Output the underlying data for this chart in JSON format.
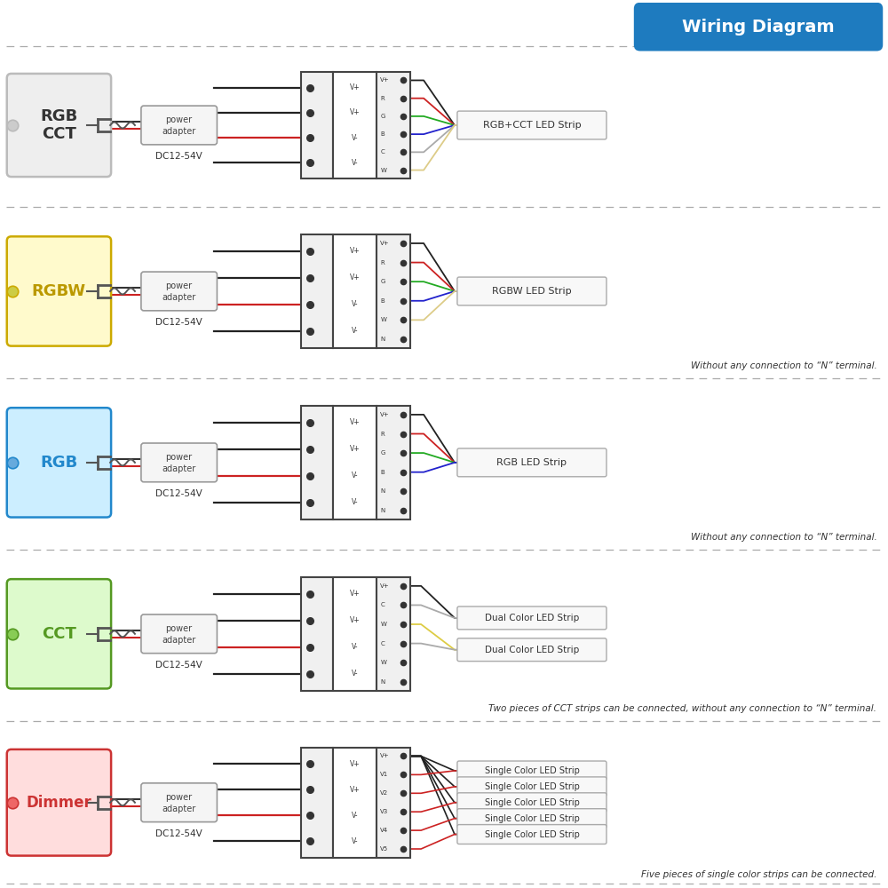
{
  "title": "Wiring Diagram",
  "title_bg": "#1e7bbf",
  "title_color": "#ffffff",
  "bg_color": "#ffffff",
  "line_sep_color": "#aaaaaa",
  "sections": [
    {
      "id": "rgbcct",
      "label": "RGB\nCCT",
      "label_size": 13,
      "label_color": "#333333",
      "box_edge": "#bbbbbb",
      "box_fill": "#eeeeee",
      "dot_color": "#cccccc",
      "input_wire_colors": [
        "#222222",
        "#222222",
        "#cc2222",
        "#222222"
      ],
      "output_wire_colors": [
        "#222222",
        "#cc2222",
        "#22aa22",
        "#2222cc",
        "#aaaaaa",
        "#ddcc88"
      ],
      "in_labels": [
        "V+",
        "V+",
        "V-",
        "V-"
      ],
      "out_labels": [
        "V+",
        "R",
        "G",
        "B",
        "C",
        "W"
      ],
      "n_in_wires": 4,
      "strip_label": "RGB+CCT LED Strip",
      "note": ""
    },
    {
      "id": "rgbw",
      "label": "RGBW",
      "label_size": 13,
      "label_color": "#bb9900",
      "box_edge": "#ccaa00",
      "box_fill": "#fffacc",
      "dot_color": "#cccc44",
      "input_wire_colors": [
        "#222222",
        "#222222",
        "#cc2222",
        "#222222"
      ],
      "output_wire_colors": [
        "#222222",
        "#cc2222",
        "#22aa22",
        "#2222cc",
        "#ddcc88"
      ],
      "in_labels": [
        "V+",
        "V+",
        "V-",
        "V-"
      ],
      "out_labels": [
        "V+",
        "R",
        "G",
        "B",
        "W",
        "N"
      ],
      "n_in_wires": 4,
      "strip_label": "RGBW LED Strip",
      "note": "Without any connection to “N” terminal."
    },
    {
      "id": "rgb",
      "label": "RGB",
      "label_size": 13,
      "label_color": "#2288cc",
      "box_edge": "#2288cc",
      "box_fill": "#cceeff",
      "dot_color": "#66aadd",
      "input_wire_colors": [
        "#222222",
        "#222222",
        "#cc2222",
        "#222222"
      ],
      "output_wire_colors": [
        "#222222",
        "#cc2222",
        "#22aa22",
        "#2222cc"
      ],
      "in_labels": [
        "V+",
        "V+",
        "V-",
        "V-"
      ],
      "out_labels": [
        "V+",
        "R",
        "G",
        "B",
        "N",
        "N"
      ],
      "n_in_wires": 4,
      "strip_label": "RGB LED Strip",
      "note": "Without any connection to “N” terminal."
    },
    {
      "id": "cct",
      "label": "CCT",
      "label_size": 13,
      "label_color": "#559922",
      "box_edge": "#559922",
      "box_fill": "#ddfacc",
      "dot_color": "#88cc55",
      "input_wire_colors": [
        "#222222",
        "#222222",
        "#cc2222",
        "#222222"
      ],
      "output_wire_colors": [
        "#222222",
        "#aaaaaa",
        "#ddcc44",
        "#aaaaaa",
        "#ddcc44"
      ],
      "in_labels": [
        "V+",
        "V+",
        "V-",
        "V-"
      ],
      "out_labels": [
        "V+",
        "C",
        "W",
        "C",
        "W",
        "N"
      ],
      "n_in_wires": 4,
      "strip_label": "Dual Color LED Strip",
      "strip_label2": "Dual Color LED Strip",
      "note": "Two pieces of CCT strips can be connected, without any connection to “N” terminal."
    },
    {
      "id": "dimmer",
      "label": "Dimmer",
      "label_size": 12,
      "label_color": "#cc3333",
      "box_edge": "#cc3333",
      "box_fill": "#ffdddd",
      "dot_color": "#ee6666",
      "input_wire_colors": [
        "#222222",
        "#222222",
        "#cc2222",
        "#222222"
      ],
      "output_wire_colors": [
        "#222222",
        "#cc2222",
        "#cc2222",
        "#cc2222",
        "#cc2222",
        "#cc2222"
      ],
      "in_labels": [
        "V+",
        "V+",
        "V-",
        "V-"
      ],
      "out_labels": [
        "V+",
        "V1",
        "V2",
        "V3",
        "V4",
        "V5"
      ],
      "n_in_wires": 4,
      "strip_labels": [
        "Single Color LED Strip",
        "Single Color LED Strip",
        "Single Color LED Strip",
        "Single Color LED Strip",
        "Single Color LED Strip"
      ],
      "note": "Five pieces of single color strips can be connected."
    }
  ]
}
